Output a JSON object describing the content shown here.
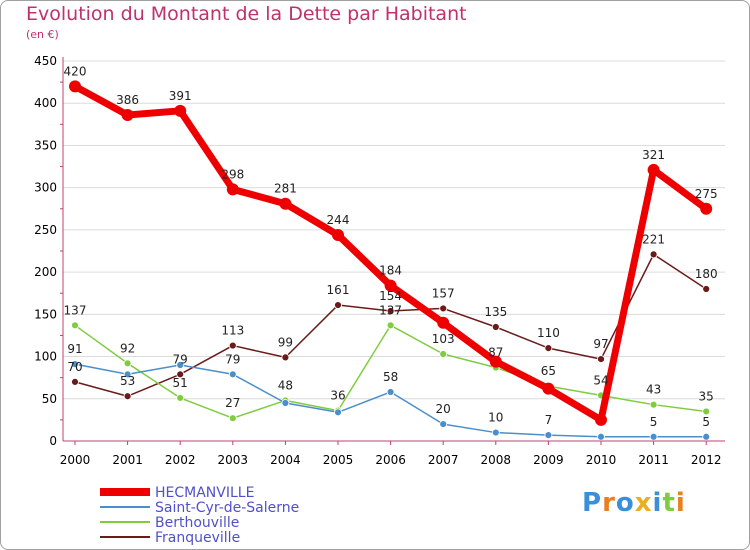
{
  "chart_data": {
    "type": "line",
    "title": "Evolution du Montant de la Dette par Habitant",
    "subtitle": "(en €)",
    "x": [
      "2000",
      "2001",
      "2002",
      "2003",
      "2004",
      "2005",
      "2006",
      "2007",
      "2008",
      "2009",
      "2010",
      "2011",
      "2012"
    ],
    "ylim": [
      0,
      450
    ],
    "yticks": [
      0,
      50,
      100,
      150,
      200,
      250,
      300,
      350,
      400,
      450
    ],
    "grid": "horizontal",
    "legend_position": "bottom-left",
    "series": [
      {
        "name": "HECMANVILLE",
        "color": "#ee0000",
        "values": [
          420,
          386,
          391,
          298,
          281,
          244,
          184,
          140,
          94,
          62,
          25,
          321,
          275
        ],
        "labels": [
          "420",
          "386",
          "391",
          "298",
          "281",
          "244",
          "184",
          "",
          "",
          "",
          "",
          "321",
          "275"
        ]
      },
      {
        "name": "Saint-Cyr-de-Salerne",
        "color": "#4a8fcc",
        "values": [
          91,
          79,
          90,
          79,
          45,
          34,
          58,
          20,
          10,
          7,
          5,
          5,
          5
        ],
        "labels": [
          "91",
          "",
          "",
          "79",
          "",
          "",
          "58",
          "20",
          "10",
          "7",
          "",
          "5",
          "5"
        ]
      },
      {
        "name": "Berthouville",
        "color": "#80cc40",
        "values": [
          137,
          92,
          51,
          27,
          48,
          36,
          137,
          103,
          87,
          65,
          54,
          43,
          35
        ],
        "labels": [
          "137",
          "92",
          "51",
          "27",
          "48",
          "36",
          "137",
          "103",
          "87",
          "65",
          "54",
          "43",
          "35"
        ]
      },
      {
        "name": "Franqueville",
        "color": "#6b1a1a",
        "values": [
          70,
          53,
          79,
          113,
          99,
          161,
          154,
          157,
          135,
          110,
          97,
          221,
          180
        ],
        "labels": [
          "70",
          "53",
          "79",
          "113",
          "99",
          "161",
          "154",
          "157",
          "135",
          "110",
          "97",
          "221",
          "180"
        ]
      }
    ]
  },
  "logo": {
    "letters": [
      "P",
      "r",
      "o",
      "x",
      "i",
      "t",
      "i"
    ],
    "colors": [
      "#3a8fd8",
      "#e88020",
      "#3a8fd8",
      "#e8b020",
      "#3a8fd8",
      "#80cc40",
      "#e88020"
    ]
  }
}
